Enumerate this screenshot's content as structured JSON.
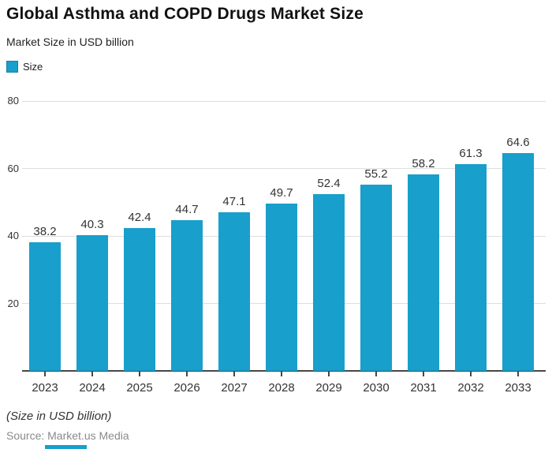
{
  "header": {
    "title": "Global Asthma and COPD Drugs Market Size",
    "subtitle": "Market Size in USD billion"
  },
  "legend": {
    "label": "Size",
    "swatch_color": "#189FCB"
  },
  "chart_data": {
    "type": "bar",
    "title": "Global Asthma and COPD Drugs Market Size",
    "subtitle": "Market Size in USD billion",
    "categories": [
      "2023",
      "2024",
      "2025",
      "2026",
      "2027",
      "2028",
      "2029",
      "2030",
      "2031",
      "2032",
      "2033"
    ],
    "series": [
      {
        "name": "Size",
        "values": [
          38.2,
          40.3,
          42.4,
          44.7,
          47.1,
          49.7,
          52.4,
          55.2,
          58.2,
          61.3,
          64.6
        ],
        "color": "#189FCB"
      }
    ],
    "xlabel": "",
    "ylabel": "Market Size in USD billion",
    "ylim": [
      0,
      84
    ],
    "yticks": [
      20,
      40,
      60,
      80
    ],
    "grid": true,
    "legend_position": "top-left",
    "value_labels_shown": true
  },
  "footer": {
    "note": "(Size in USD billion)",
    "source": "Source: Market.us Media"
  },
  "colors": {
    "bar": "#189FCB",
    "gridline": "#DEDEDE",
    "axis": "#474747",
    "label": "#333333",
    "source_text": "#8A8A8A"
  }
}
